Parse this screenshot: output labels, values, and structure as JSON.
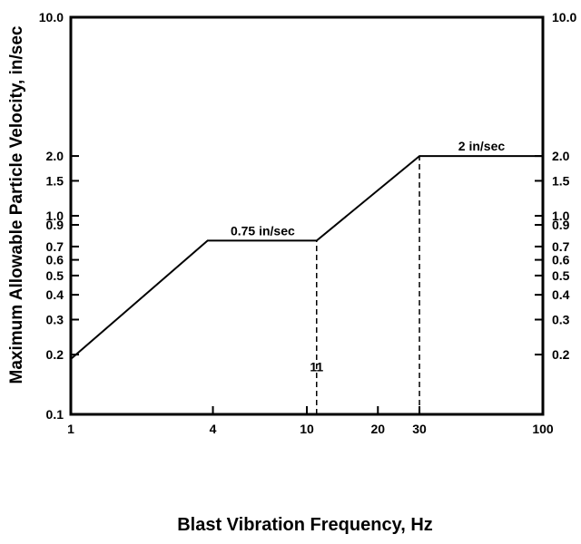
{
  "chart_data": {
    "type": "line",
    "title": "",
    "xlabel": "Blast Vibration Frequency, Hz",
    "ylabel": "Maximum Allowable Particle Velocity, in/sec",
    "x_scale": "log",
    "y_scale": "log",
    "xlim": [
      1,
      100
    ],
    "ylim": [
      0.1,
      10.0
    ],
    "grid": false,
    "x_ticks": [
      {
        "value": 1,
        "label": "1"
      },
      {
        "value": 4,
        "label": "4"
      },
      {
        "value": 10,
        "label": "10"
      },
      {
        "value": 20,
        "label": "20"
      },
      {
        "value": 30,
        "label": "30"
      },
      {
        "value": 100,
        "label": "100"
      }
    ],
    "y_ticks": [
      {
        "value": 0.1,
        "label": "0.1"
      },
      {
        "value": 0.2,
        "label": "0.2"
      },
      {
        "value": 0.3,
        "label": "0.3"
      },
      {
        "value": 0.4,
        "label": "0.4"
      },
      {
        "value": 0.5,
        "label": "0.5"
      },
      {
        "value": 0.6,
        "label": "0.6"
      },
      {
        "value": 0.7,
        "label": "0.7"
      },
      {
        "value": 0.9,
        "label": "0.9"
      },
      {
        "value": 1.0,
        "label": "1.0"
      },
      {
        "value": 1.5,
        "label": "1.5"
      },
      {
        "value": 2.0,
        "label": "2.0"
      },
      {
        "value": 10.0,
        "label": "10.0"
      }
    ],
    "right_y_ticks": [
      {
        "value": 0.2,
        "label": "0.2"
      },
      {
        "value": 0.3,
        "label": "0.3"
      },
      {
        "value": 0.4,
        "label": "0.4"
      },
      {
        "value": 0.5,
        "label": "0.5"
      },
      {
        "value": 0.6,
        "label": "0.6"
      },
      {
        "value": 0.7,
        "label": "0.7"
      },
      {
        "value": 0.9,
        "label": "0.9"
      },
      {
        "value": 1.0,
        "label": "1.0"
      },
      {
        "value": 1.5,
        "label": "1.5"
      },
      {
        "value": 2.0,
        "label": "2.0"
      },
      {
        "value": 10.0,
        "label": "10.0"
      }
    ],
    "series": [
      {
        "x": [
          1,
          3.8,
          11,
          30,
          100
        ],
        "y": [
          0.19,
          0.75,
          0.75,
          2.0,
          2.0
        ]
      }
    ],
    "reference_lines": [
      {
        "x": 11,
        "y_from": 0.1,
        "y_to": 0.75,
        "label": "11"
      },
      {
        "x": 30,
        "y_from": 0.1,
        "y_to": 2.0,
        "label": ""
      }
    ],
    "annotations": [
      {
        "text": "0.75 in/sec",
        "x": 6.5,
        "y": 0.75
      },
      {
        "text": "2 in/sec",
        "x": 55,
        "y": 2.0
      }
    ]
  }
}
